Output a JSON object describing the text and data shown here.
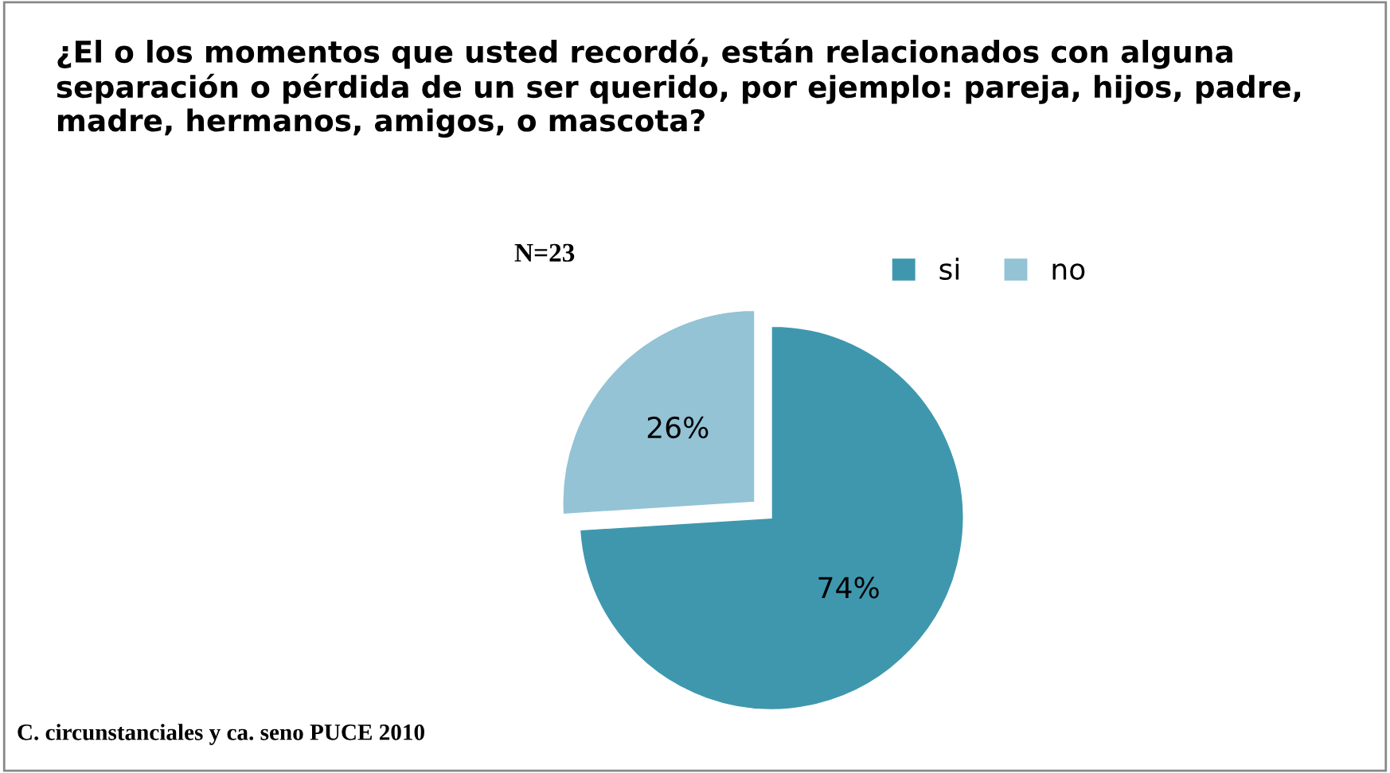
{
  "chart_data": {
    "type": "pie",
    "title": "¿El o los momentos que usted recordó, están relacionados con alguna separación o pérdida de un ser querido, por ejemplo: pareja, hijos, padre, madre, hermanos, amigos, o mascota?",
    "categories": [
      "si",
      "no"
    ],
    "values": [
      74,
      26
    ],
    "value_labels": [
      "74%",
      "26%"
    ],
    "colors": [
      "#3f97ae",
      "#93c3d5"
    ],
    "legend": "top right",
    "annotations": [
      "N=23",
      "C. circunstanciales y ca. seno PUCE 2010"
    ]
  }
}
